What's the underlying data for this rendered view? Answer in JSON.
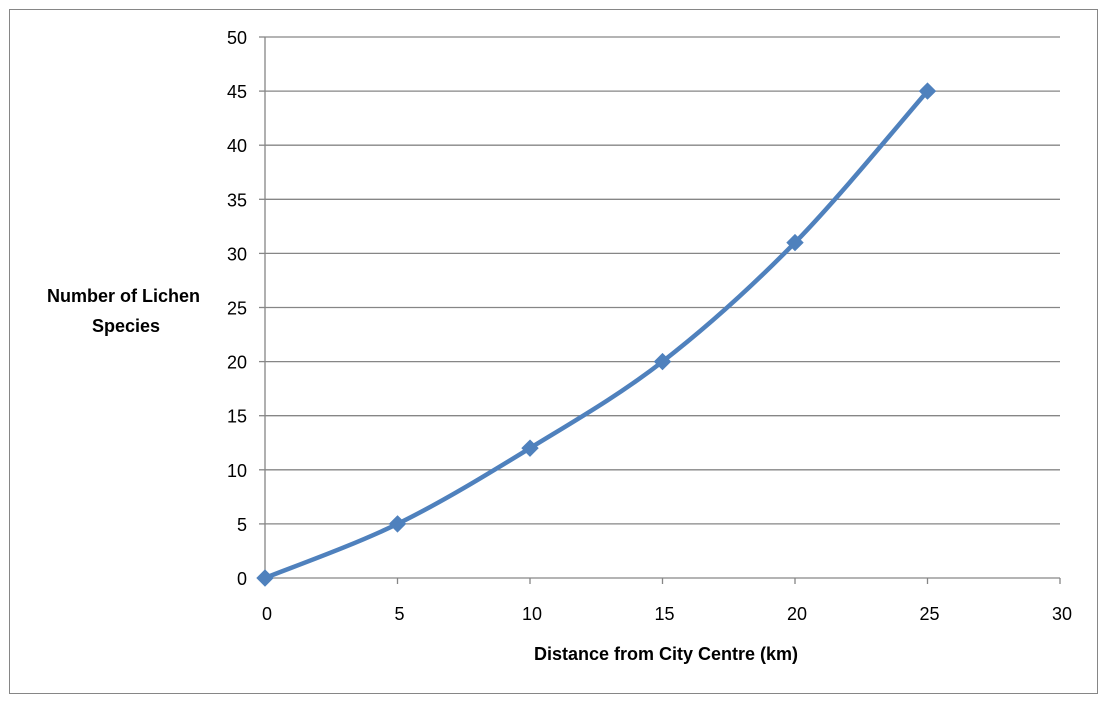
{
  "chart_data": {
    "type": "line",
    "title": "",
    "xlabel": "Distance  from City Centre (km)",
    "ylabel_lines": [
      "Number of Lichen",
      "Species"
    ],
    "xlim": [
      0,
      30
    ],
    "ylim": [
      0,
      50
    ],
    "x_ticks": [
      0,
      5,
      10,
      15,
      20,
      25,
      30
    ],
    "y_ticks": [
      0,
      5,
      10,
      15,
      20,
      25,
      30,
      35,
      40,
      45,
      50
    ],
    "grid": "horizontal",
    "smooth": true,
    "series": [
      {
        "color": "#4F81BD",
        "marker": "diamond",
        "x": [
          0,
          5,
          10,
          15,
          20,
          25
        ],
        "y": [
          0,
          5,
          12,
          20,
          31,
          45
        ]
      }
    ]
  }
}
